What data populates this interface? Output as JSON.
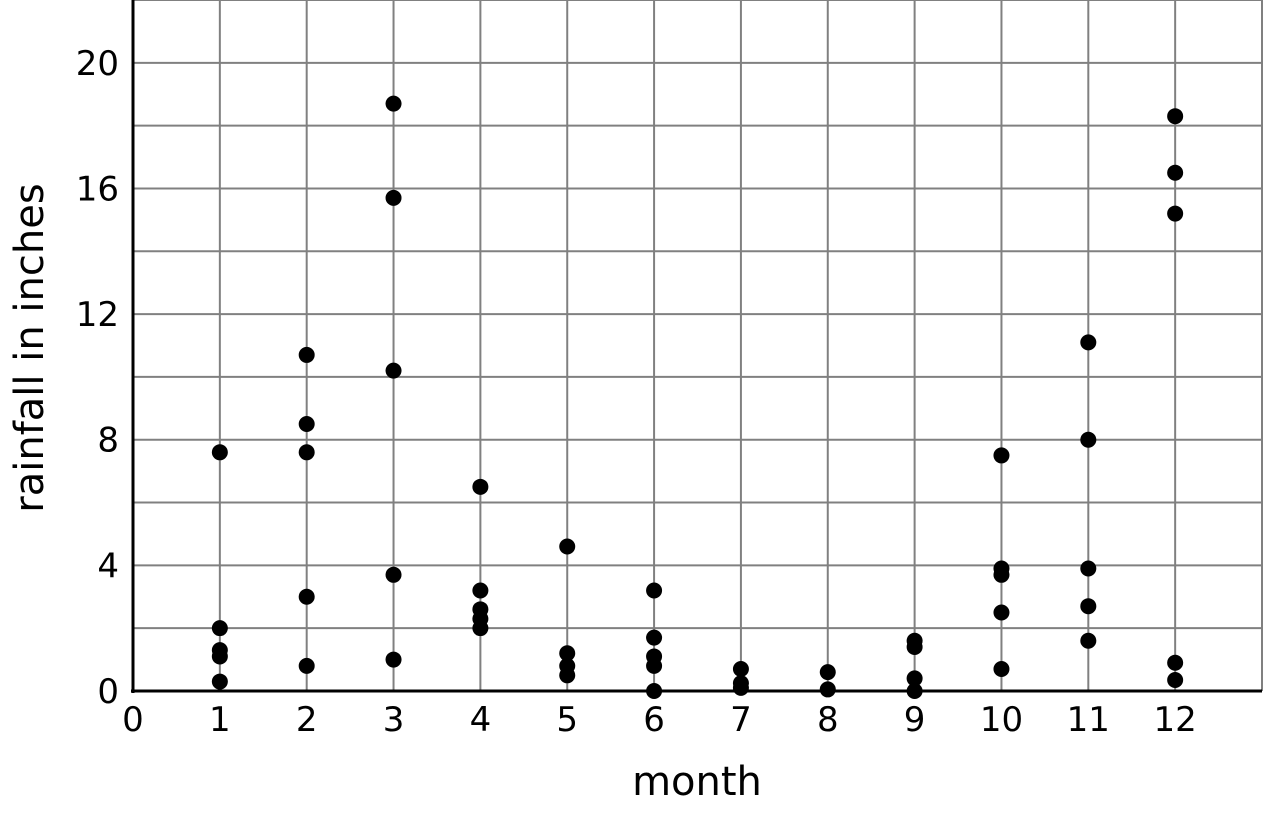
{
  "chart_data": {
    "type": "scatter",
    "title": "",
    "xlabel": "month",
    "ylabel": "rainfall in inches",
    "xlim": [
      0,
      13
    ],
    "ylim": [
      0,
      22
    ],
    "x_ticks": [
      0,
      1,
      2,
      3,
      4,
      5,
      6,
      7,
      8,
      9,
      10,
      11,
      12
    ],
    "y_ticks": [
      0,
      4,
      8,
      12,
      16,
      20
    ],
    "grid": true,
    "grid_x_step": 1,
    "grid_y_step": 2,
    "marker_color": "#000000",
    "grid_color": "#808080",
    "points": [
      [
        1,
        7.6
      ],
      [
        1,
        2.0
      ],
      [
        1,
        1.3
      ],
      [
        1,
        1.1
      ],
      [
        1,
        0.3
      ],
      [
        2,
        10.7
      ],
      [
        2,
        8.5
      ],
      [
        2,
        7.6
      ],
      [
        2,
        3.0
      ],
      [
        2,
        0.8
      ],
      [
        3,
        18.7
      ],
      [
        3,
        15.7
      ],
      [
        3,
        10.2
      ],
      [
        3,
        3.7
      ],
      [
        3,
        1.0
      ],
      [
        4,
        6.5
      ],
      [
        4,
        3.2
      ],
      [
        4,
        2.6
      ],
      [
        4,
        2.3
      ],
      [
        4,
        2.0
      ],
      [
        5,
        4.6
      ],
      [
        5,
        1.2
      ],
      [
        5,
        0.8
      ],
      [
        5,
        0.5
      ],
      [
        6,
        3.2
      ],
      [
        6,
        1.7
      ],
      [
        6,
        1.1
      ],
      [
        6,
        0.8
      ],
      [
        6,
        0.0
      ],
      [
        7,
        0.7
      ],
      [
        7,
        0.25
      ],
      [
        7,
        0.1
      ],
      [
        8,
        0.6
      ],
      [
        8,
        0.05
      ],
      [
        9,
        1.6
      ],
      [
        9,
        1.4
      ],
      [
        9,
        0.4
      ],
      [
        9,
        0.0
      ],
      [
        10,
        7.5
      ],
      [
        10,
        3.9
      ],
      [
        10,
        3.7
      ],
      [
        10,
        2.5
      ],
      [
        10,
        0.7
      ],
      [
        11,
        11.1
      ],
      [
        11,
        8.0
      ],
      [
        11,
        3.9
      ],
      [
        11,
        2.7
      ],
      [
        11,
        1.6
      ],
      [
        12,
        18.3
      ],
      [
        12,
        16.5
      ],
      [
        12,
        15.2
      ],
      [
        12,
        0.9
      ],
      [
        12,
        0.35
      ]
    ]
  }
}
